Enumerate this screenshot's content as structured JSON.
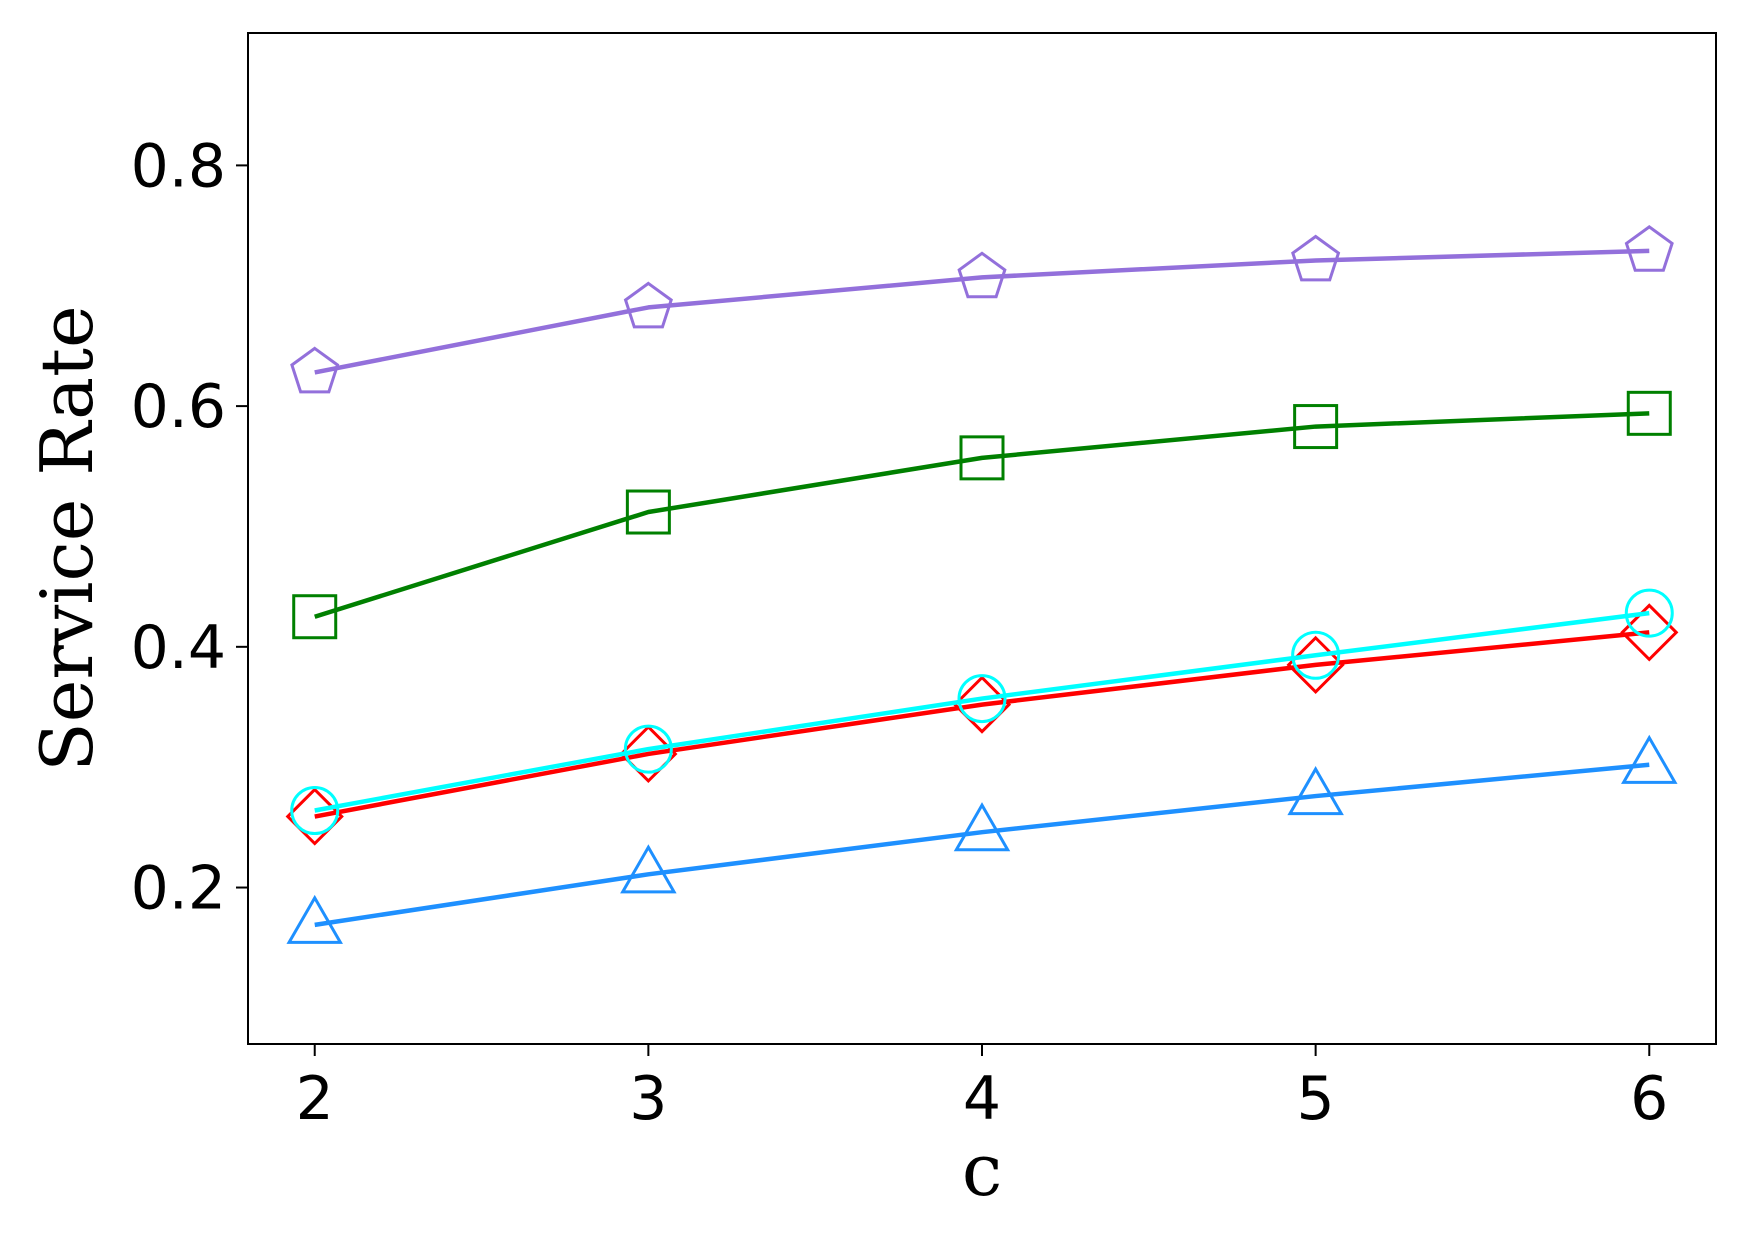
{
  "chart_data": {
    "type": "line",
    "title": "",
    "xlabel": "c",
    "ylabel": "Service Rate",
    "x": [
      2,
      3,
      4,
      5,
      6
    ],
    "xlim": [
      1.8,
      6.2
    ],
    "ylim": [
      0.07,
      0.91
    ],
    "x_ticks": [
      "2",
      "3",
      "4",
      "5",
      "6"
    ],
    "y_ticks": [
      "0.2",
      "0.4",
      "0.6",
      "0.8"
    ],
    "grid": false,
    "legend": "none",
    "series": [
      {
        "marker": "pentagon",
        "color": "#9370db",
        "values": [
          0.628,
          0.682,
          0.707,
          0.721,
          0.729
        ]
      },
      {
        "marker": "square",
        "color": "#008000",
        "values": [
          0.425,
          0.512,
          0.557,
          0.583,
          0.594
        ]
      },
      {
        "marker": "diamond",
        "color": "#ff0000",
        "values": [
          0.259,
          0.311,
          0.352,
          0.385,
          0.412
        ]
      },
      {
        "marker": "circle",
        "color": "#00ffff",
        "values": [
          0.264,
          0.315,
          0.357,
          0.393,
          0.428
        ]
      },
      {
        "marker": "triangle",
        "color": "#1e90ff",
        "values": [
          0.169,
          0.211,
          0.246,
          0.276,
          0.302
        ]
      }
    ]
  }
}
